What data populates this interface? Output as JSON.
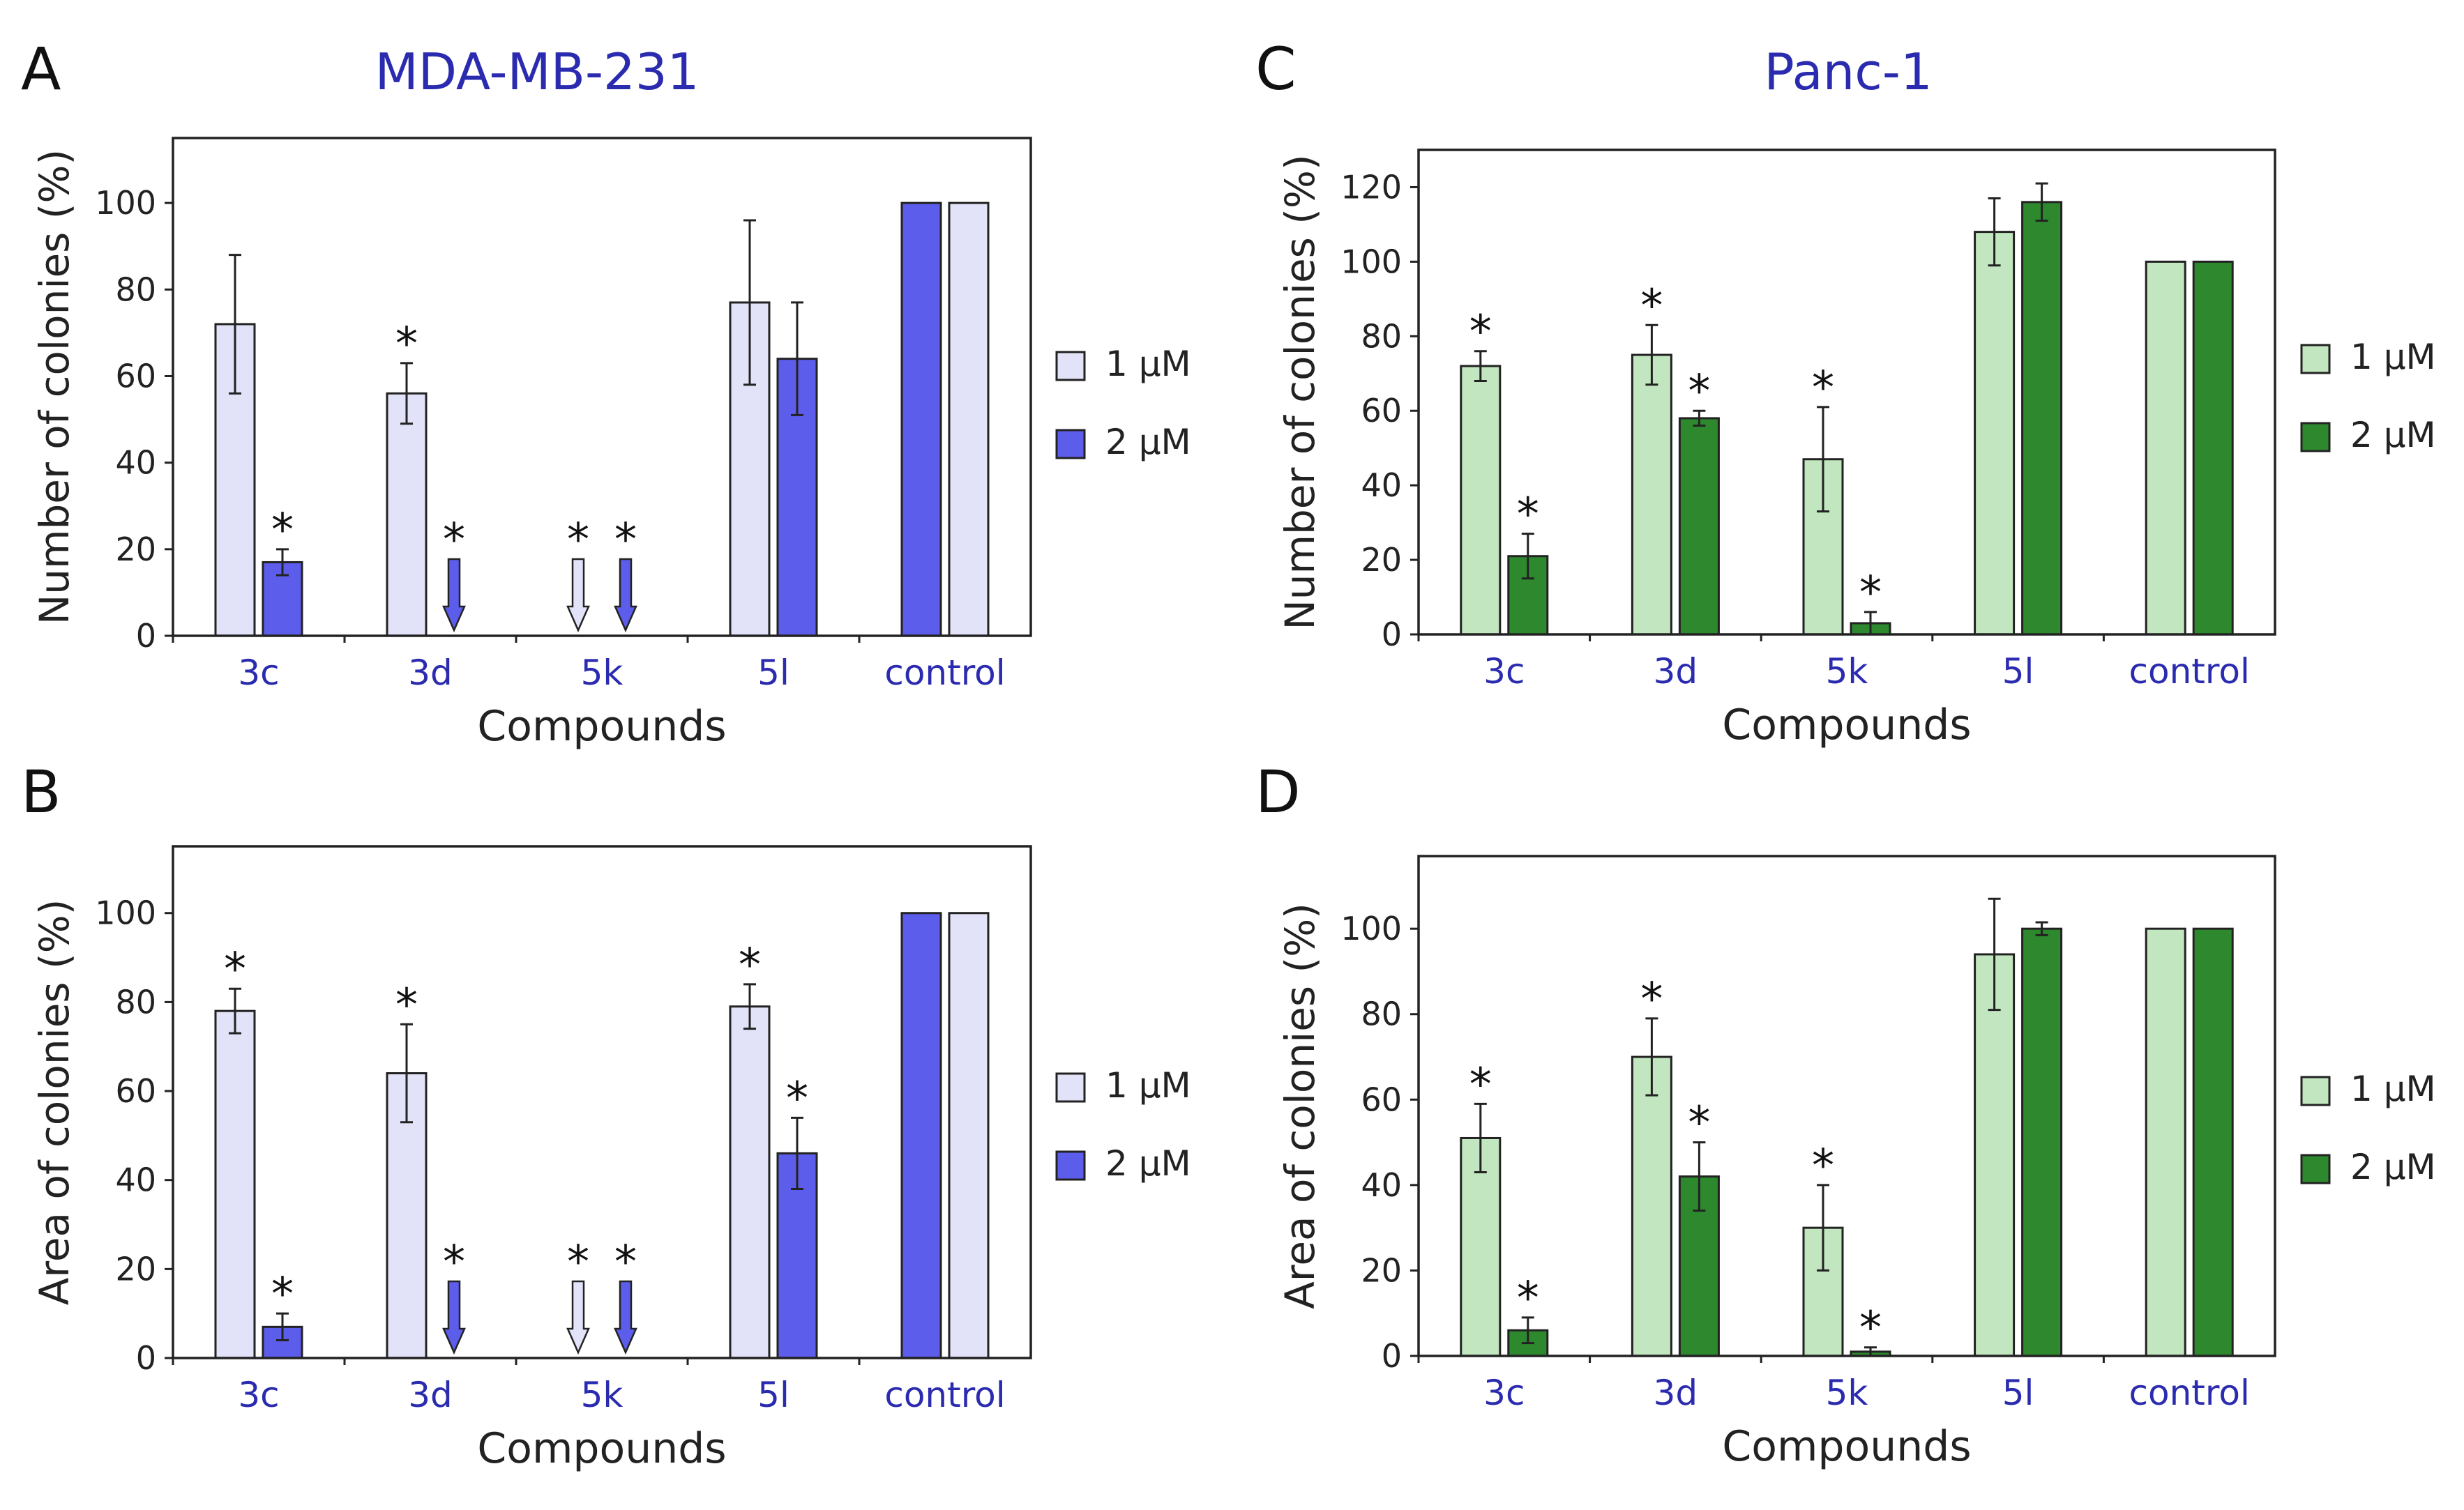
{
  "figure": {
    "column_titles": {
      "left": "MDA-MB-231",
      "right": "Panc-1"
    },
    "title_color": "#2b2bb0",
    "tick_label_color": "#2b2bb0"
  },
  "chart_data": [
    {
      "panel": "A",
      "type": "bar",
      "title": "MDA-MB-231",
      "xlabel": "Compounds",
      "ylabel": "Number of colonies (%)",
      "ylim": [
        0,
        115
      ],
      "yticks": [
        0,
        20,
        40,
        60,
        80,
        100
      ],
      "categories": [
        "3c",
        "3d",
        "5k",
        "5l",
        "control"
      ],
      "legend": {
        "position": "right",
        "entries": [
          "1 µM",
          "2 µM"
        ]
      },
      "grid": false,
      "series": [
        {
          "name": "1 µM",
          "color": "#e2e2f8",
          "values": [
            72,
            56,
            null,
            77,
            100
          ],
          "errors": [
            16,
            7,
            null,
            19,
            null
          ],
          "significant": [
            false,
            true,
            true,
            false,
            false
          ],
          "arrow_down": [
            false,
            false,
            true,
            false,
            false
          ]
        },
        {
          "name": "2 µM",
          "color": "#5d5deb",
          "values": [
            17,
            null,
            null,
            64,
            100
          ],
          "errors": [
            3,
            null,
            null,
            13,
            null
          ],
          "significant": [
            true,
            true,
            true,
            false,
            false
          ],
          "arrow_down": [
            false,
            true,
            true,
            false,
            false
          ]
        }
      ],
      "control_order": [
        "2 µM",
        "1 µM"
      ]
    },
    {
      "panel": "B",
      "type": "bar",
      "title": "",
      "xlabel": "Compounds",
      "ylabel": "Area of colonies (%)",
      "ylim": [
        0,
        115
      ],
      "yticks": [
        0,
        20,
        40,
        60,
        80,
        100
      ],
      "categories": [
        "3c",
        "3d",
        "5k",
        "5l",
        "control"
      ],
      "legend": {
        "position": "right",
        "entries": [
          "1 µM",
          "2 µM"
        ]
      },
      "grid": false,
      "series": [
        {
          "name": "1 µM",
          "color": "#e2e2f8",
          "values": [
            78,
            64,
            null,
            79,
            100
          ],
          "errors": [
            5,
            11,
            null,
            5,
            null
          ],
          "significant": [
            true,
            true,
            true,
            true,
            false
          ],
          "arrow_down": [
            false,
            false,
            true,
            false,
            false
          ]
        },
        {
          "name": "2 µM",
          "color": "#5d5deb",
          "values": [
            7,
            null,
            null,
            46,
            100
          ],
          "errors": [
            3,
            null,
            null,
            8,
            null
          ],
          "significant": [
            true,
            true,
            true,
            true,
            false
          ],
          "arrow_down": [
            false,
            true,
            true,
            false,
            false
          ]
        }
      ],
      "control_order": [
        "2 µM",
        "1 µM"
      ]
    },
    {
      "panel": "C",
      "type": "bar",
      "title": "Panc-1",
      "xlabel": "Compounds",
      "ylabel": "Number of colonies (%)",
      "ylim": [
        0,
        130
      ],
      "yticks": [
        0,
        20,
        40,
        60,
        80,
        100,
        120
      ],
      "categories": [
        "3c",
        "3d",
        "5k",
        "5l",
        "control"
      ],
      "legend": {
        "position": "right",
        "entries": [
          "1 µM",
          "2 µM"
        ]
      },
      "grid": false,
      "series": [
        {
          "name": "1 µM",
          "color": "#c2e6bf",
          "values": [
            72,
            75,
            47,
            108,
            100
          ],
          "errors": [
            4,
            8,
            14,
            9,
            null
          ],
          "significant": [
            true,
            true,
            true,
            false,
            false
          ],
          "arrow_down": [
            false,
            false,
            false,
            false,
            false
          ]
        },
        {
          "name": "2 µM",
          "color": "#2e892e",
          "values": [
            21,
            58,
            3,
            116,
            100
          ],
          "errors": [
            6,
            2,
            3,
            5,
            null
          ],
          "significant": [
            true,
            true,
            true,
            false,
            false
          ],
          "arrow_down": [
            false,
            false,
            false,
            false,
            false
          ]
        }
      ],
      "control_order": [
        "1 µM",
        "2 µM"
      ]
    },
    {
      "panel": "D",
      "type": "bar",
      "title": "",
      "xlabel": "Compounds",
      "ylabel": "Area of colonies (%)",
      "ylim": [
        0,
        117
      ],
      "yticks": [
        0,
        20,
        40,
        60,
        80,
        100
      ],
      "categories": [
        "3c",
        "3d",
        "5k",
        "5l",
        "control"
      ],
      "legend": {
        "position": "right",
        "entries": [
          "1 µM",
          "2 µM"
        ]
      },
      "grid": false,
      "series": [
        {
          "name": "1 µM",
          "color": "#c2e6bf",
          "values": [
            51,
            70,
            30,
            94,
            100
          ],
          "errors": [
            8,
            9,
            10,
            13,
            null
          ],
          "significant": [
            true,
            true,
            true,
            false,
            false
          ],
          "arrow_down": [
            false,
            false,
            false,
            false,
            false
          ]
        },
        {
          "name": "2 µM",
          "color": "#2e892e",
          "values": [
            6,
            42,
            1,
            100,
            100
          ],
          "errors": [
            3,
            8,
            1,
            1.5,
            null
          ],
          "significant": [
            true,
            true,
            true,
            false,
            false
          ],
          "arrow_down": [
            false,
            false,
            false,
            false,
            false
          ]
        }
      ],
      "control_order": [
        "1 µM",
        "2 µM"
      ]
    }
  ]
}
